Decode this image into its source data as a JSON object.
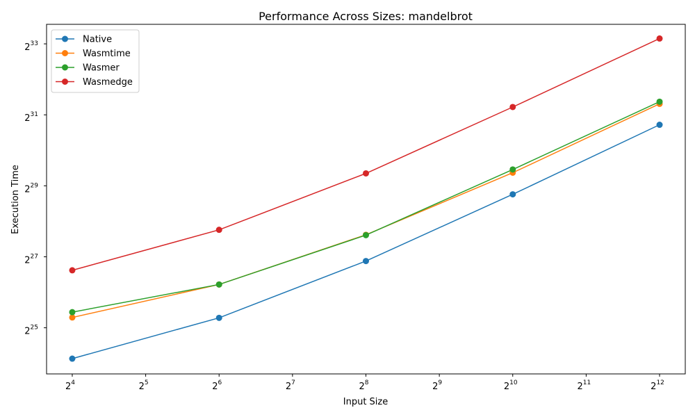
{
  "chart_data": {
    "type": "line",
    "title": "Performance Across Sizes: mandelbrot",
    "xlabel": "Input Size",
    "ylabel": "Execution Time",
    "x_scale": "log2",
    "y_scale": "log2",
    "xlim_exp": [
      3.65,
      12.35
    ],
    "ylim_exp": [
      23.7,
      33.55
    ],
    "x_tick_exponents": [
      4,
      5,
      6,
      7,
      8,
      9,
      10,
      11,
      12
    ],
    "y_tick_exponents": [
      25,
      27,
      29,
      31,
      33
    ],
    "x": [
      16,
      64,
      256,
      1024,
      4096
    ],
    "series": [
      {
        "name": "Native",
        "color": "#1f77b4",
        "log2_values": [
          24.13,
          25.28,
          26.88,
          28.76,
          30.72
        ]
      },
      {
        "name": "Wasmtime",
        "color": "#ff7f0e",
        "log2_values": [
          25.29,
          26.22,
          27.62,
          29.37,
          31.31
        ]
      },
      {
        "name": "Wasmer",
        "color": "#2ca02c",
        "log2_values": [
          25.44,
          26.22,
          27.61,
          29.46,
          31.37
        ]
      },
      {
        "name": "Wasmedge",
        "color": "#d62728",
        "log2_values": [
          26.62,
          27.76,
          29.35,
          31.22,
          33.15
        ]
      }
    ],
    "legend_position": "top-left",
    "grid": false
  }
}
